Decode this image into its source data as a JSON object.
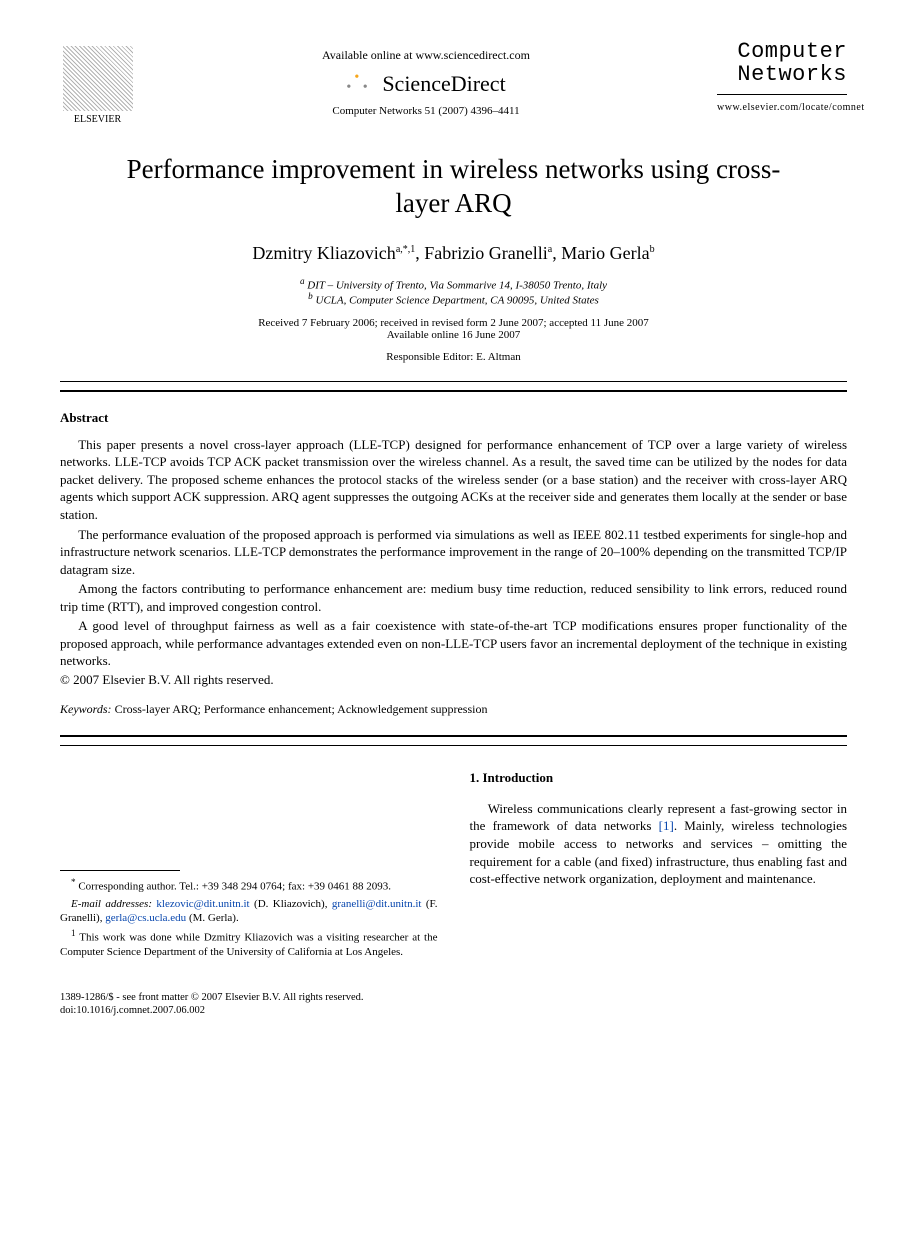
{
  "header": {
    "available_text": "Available online at www.sciencedirect.com",
    "sd_brand": "ScienceDirect",
    "citation": "Computer Networks 51 (2007) 4396–4411",
    "elsevier_label": "ELSEVIER",
    "journal_line1": "Computer",
    "journal_line2": "Networks",
    "journal_url": "www.elsevier.com/locate/comnet"
  },
  "title": "Performance improvement in wireless networks using cross-layer ARQ",
  "authors": {
    "a1_name": "Dzmitry Kliazovich",
    "a1_sup": "a,*,1",
    "a2_name": "Fabrizio Granelli",
    "a2_sup": "a",
    "a3_name": "Mario Gerla",
    "a3_sup": "b"
  },
  "affiliations": {
    "a": "DIT – University of Trento, Via Sommarive 14, I-38050 Trento, Italy",
    "b": "UCLA, Computer Science Department, CA 90095, United States"
  },
  "dates": {
    "received": "Received 7 February 2006; received in revised form 2 June 2007; accepted 11 June 2007",
    "online": "Available online 16 June 2007"
  },
  "editor": "Responsible Editor: E. Altman",
  "abstract": {
    "heading": "Abstract",
    "p1": "This paper presents a novel cross-layer approach (LLE-TCP) designed for performance enhancement of TCP over a large variety of wireless networks. LLE-TCP avoids TCP ACK packet transmission over the wireless channel. As a result, the saved time can be utilized by the nodes for data packet delivery. The proposed scheme enhances the protocol stacks of the wireless sender (or a base station) and the receiver with cross-layer ARQ agents which support ACK suppression. ARQ agent suppresses the outgoing ACKs at the receiver side and generates them locally at the sender or base station.",
    "p2": "The performance evaluation of the proposed approach is performed via simulations as well as IEEE 802.11 testbed experiments for single-hop and infrastructure network scenarios. LLE-TCP demonstrates the performance improvement in the range of 20–100% depending on the transmitted TCP/IP datagram size.",
    "p3": "Among the factors contributing to performance enhancement are: medium busy time reduction, reduced sensibility to link errors, reduced round trip time (RTT), and improved congestion control.",
    "p4": "A good level of throughput fairness as well as a fair coexistence with state-of-the-art TCP modifications ensures proper functionality of the proposed approach, while performance advantages extended even on non-LLE-TCP users favor an incremental deployment of the technique in existing networks.",
    "copyright": "© 2007 Elsevier B.V. All rights reserved."
  },
  "keywords": {
    "label": "Keywords:",
    "text": "Cross-layer ARQ; Performance enhancement; Acknowledgement suppression"
  },
  "intro": {
    "heading": "1. Introduction",
    "p1_a": "Wireless communications clearly represent a fast-growing sector in the framework of data networks ",
    "p1_ref": "[1]",
    "p1_b": ". Mainly, wireless technologies provide mobile access to networks and services – omitting the requirement for a cable (and fixed) infrastructure, thus enabling fast and cost-effective network organization, deployment and maintenance."
  },
  "footnotes": {
    "corr": "Corresponding author. Tel.: +39 348 294 0764; fax: +39 0461 88 2093.",
    "email_label": "E-mail addresses:",
    "email1": "klezovic@dit.unitn.it",
    "email1_who": "(D. Kliazovich),",
    "email2": "granelli@dit.unitn.it",
    "email2_who": "(F. Granelli),",
    "email3": "gerla@cs.ucla.edu",
    "email3_who": "(M. Gerla).",
    "note1": "This work was done while Dzmitry Kliazovich was a visiting researcher at the Computer Science Department of the University of California at Los Angeles."
  },
  "footer": {
    "line1": "1389-1286/$ - see front matter © 2007 Elsevier B.V. All rights reserved.",
    "line2": "doi:10.1016/j.comnet.2007.06.002"
  }
}
